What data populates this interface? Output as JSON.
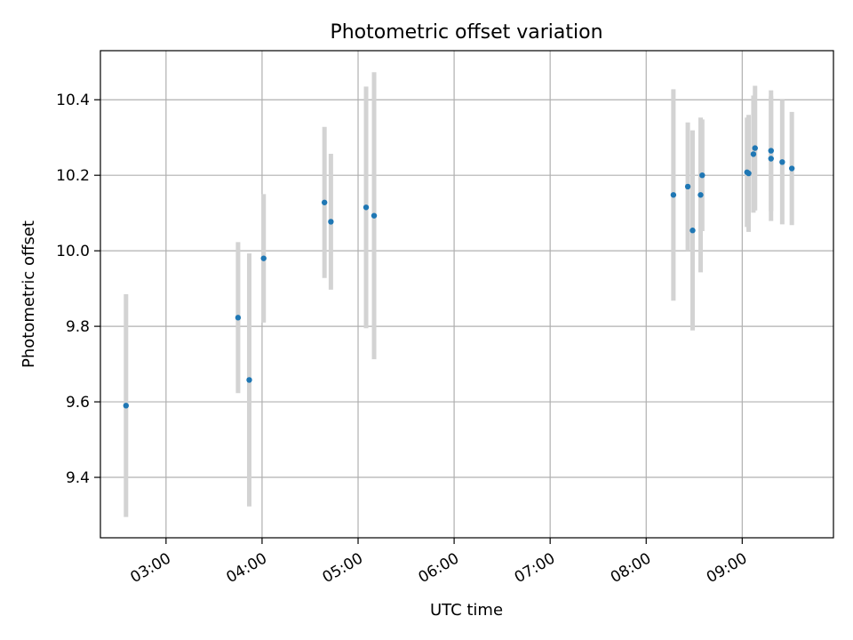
{
  "chart_data": {
    "type": "scatter",
    "title": "Photometric offset variation",
    "xlabel": "UTC time",
    "ylabel": "Photometric offset",
    "x_ticks": [
      "03:00",
      "04:00",
      "05:00",
      "06:00",
      "07:00",
      "08:00",
      "09:00"
    ],
    "y_ticks": [
      "9.4",
      "9.6",
      "9.8",
      "10.0",
      "10.2",
      "10.4"
    ],
    "xlim": [
      "02:19",
      "09:57"
    ],
    "ylim": [
      9.24,
      10.53
    ],
    "grid": true,
    "marker_color": "#1f77b4",
    "errorbar_color": "#d3d3d3",
    "points": [
      {
        "time": "02:35",
        "y": 9.59,
        "err": 0.295
      },
      {
        "time": "03:45",
        "y": 9.823,
        "err": 0.2
      },
      {
        "time": "03:52",
        "y": 9.658,
        "err": 0.335
      },
      {
        "time": "04:01",
        "y": 9.98,
        "err": 0.17
      },
      {
        "time": "04:39",
        "y": 10.128,
        "err": 0.2
      },
      {
        "time": "04:43",
        "y": 10.077,
        "err": 0.18
      },
      {
        "time": "05:05",
        "y": 10.115,
        "err": 0.32
      },
      {
        "time": "05:10",
        "y": 10.093,
        "err": 0.38
      },
      {
        "time": "08:17",
        "y": 10.148,
        "err": 0.28
      },
      {
        "time": "08:26",
        "y": 10.17,
        "err": 0.17
      },
      {
        "time": "08:29",
        "y": 10.054,
        "err": 0.265
      },
      {
        "time": "08:34",
        "y": 10.148,
        "err": 0.205
      },
      {
        "time": "08:35",
        "y": 10.2,
        "err": 0.148
      },
      {
        "time": "09:03",
        "y": 10.208,
        "err": 0.145
      },
      {
        "time": "09:04",
        "y": 10.205,
        "err": 0.155
      },
      {
        "time": "09:07",
        "y": 10.256,
        "err": 0.155
      },
      {
        "time": "09:08",
        "y": 10.272,
        "err": 0.165
      },
      {
        "time": "09:18",
        "y": 10.265,
        "err": 0.16
      },
      {
        "time": "09:18",
        "y": 10.244,
        "err": 0.165
      },
      {
        "time": "09:25",
        "y": 10.235,
        "err": 0.165
      },
      {
        "time": "09:31",
        "y": 10.218,
        "err": 0.15
      }
    ]
  }
}
